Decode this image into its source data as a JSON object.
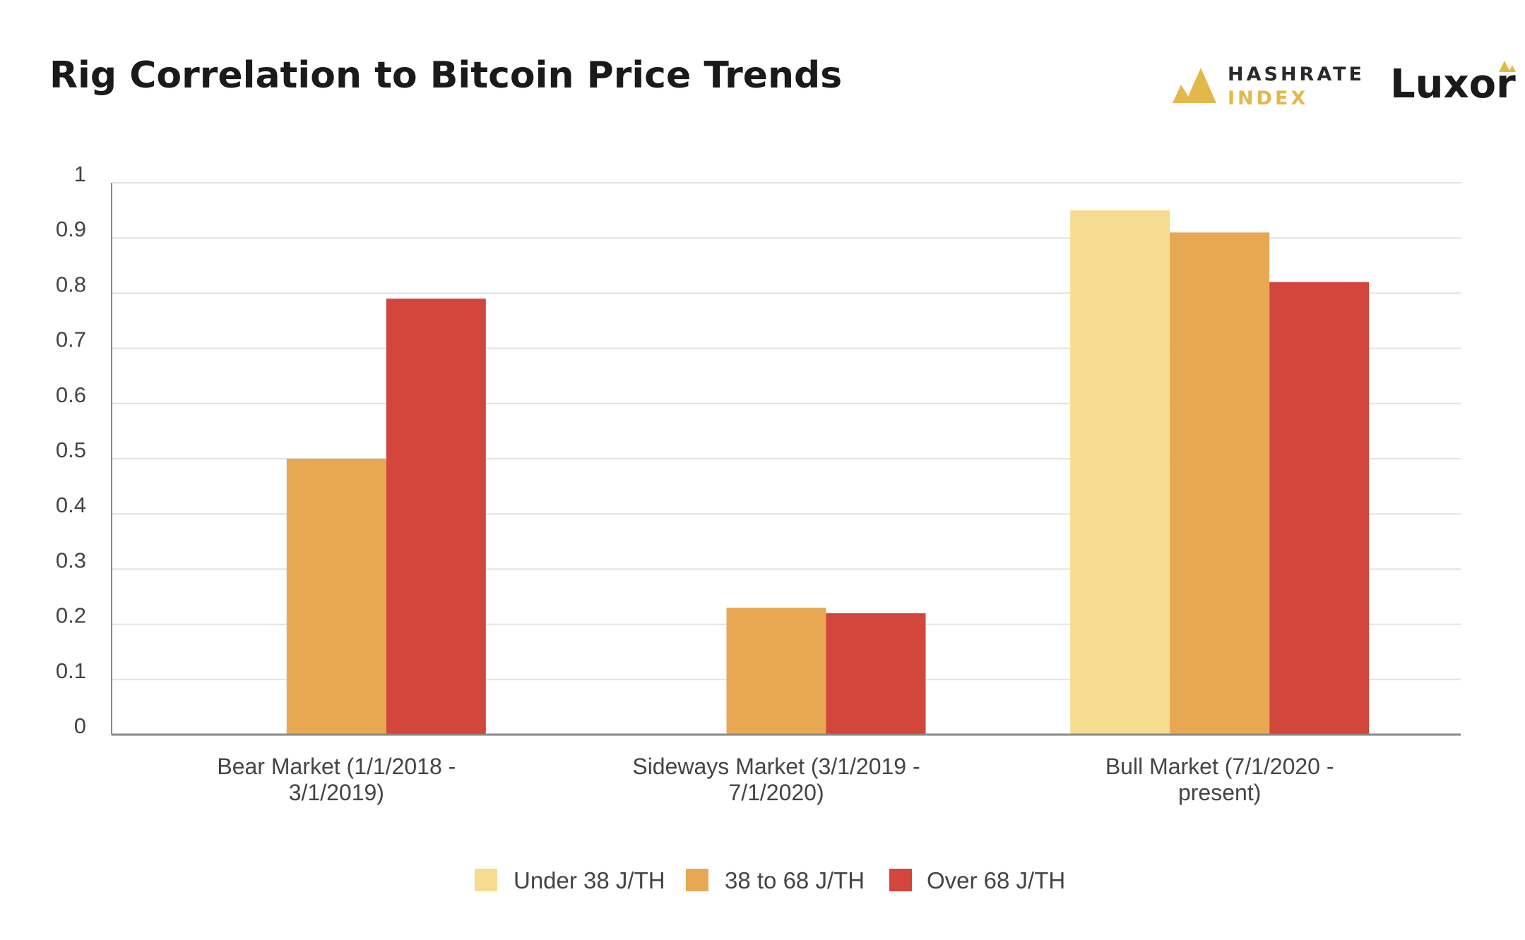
{
  "header": {
    "title": "Rig Correlation to Bitcoin Price Trends",
    "brand_primary": "HASHRATE",
    "brand_secondary": "INDEX",
    "brand_luxor": "Luxor"
  },
  "colors": {
    "under_38": "#f5dc91",
    "from_38_to_68": "#e8a853",
    "over_68": "#d2463b",
    "grid": "#e2e2e2",
    "axis": "#888888",
    "brand_gold": "#e3b84a"
  },
  "chart_data": {
    "type": "bar",
    "title": "Rig Correlation to Bitcoin Price Trends",
    "xlabel": "",
    "ylabel": "",
    "ylim": [
      0,
      1
    ],
    "yticks": [
      "0",
      "0.1",
      "0.2",
      "0.3",
      "0.4",
      "0.5",
      "0.6",
      "0.7",
      "0.8",
      "0.9",
      "1"
    ],
    "grid": true,
    "legend_position": "bottom",
    "categories": [
      [
        "Bear Market (1/1/2018 -",
        "3/1/2019)"
      ],
      [
        "Sideways Market (3/1/2019 -",
        "7/1/2020)"
      ],
      [
        "Bull Market (7/1/2020 -",
        "present)"
      ]
    ],
    "series": [
      {
        "name": "Under 38 J/TH",
        "values": [
          null,
          null,
          0.95
        ]
      },
      {
        "name": "38 to 68 J/TH",
        "values": [
          0.5,
          0.23,
          0.91
        ]
      },
      {
        "name": "Over 68 J/TH",
        "values": [
          0.79,
          0.22,
          0.82
        ]
      }
    ]
  }
}
